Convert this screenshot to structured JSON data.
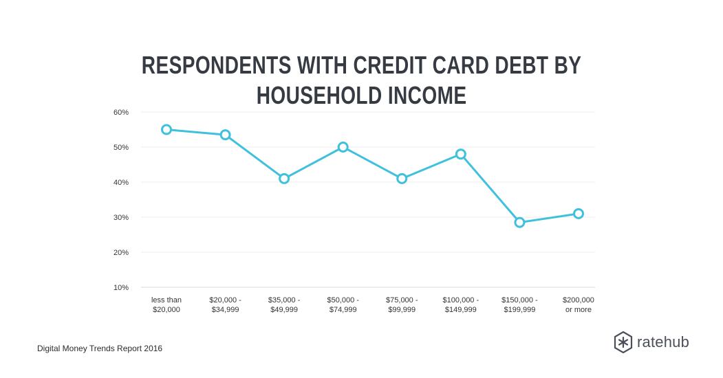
{
  "chart_data": {
    "type": "line",
    "title": "RESPONDENTS WITH CREDIT CARD DEBT BY HOUSEHOLD INCOME",
    "categories": [
      [
        "less than",
        "$20,000"
      ],
      [
        "$20,000 -",
        "$34,999"
      ],
      [
        "$35,000 -",
        "$49,999"
      ],
      [
        "$50,000 -",
        "$74,999"
      ],
      [
        "$75,000 -",
        "$99,999"
      ],
      [
        "$100,000 -",
        "$149,999"
      ],
      [
        "$150,000 -",
        "$199,999"
      ],
      [
        "$200,000",
        "or more"
      ]
    ],
    "values": [
      55,
      53.5,
      41,
      50,
      41,
      48,
      28.5,
      31
    ],
    "yticks": [
      "10%",
      "20%",
      "30%",
      "40%",
      "50%",
      "60%"
    ],
    "ytick_values": [
      10,
      20,
      30,
      40,
      50,
      60
    ],
    "ylim": [
      10,
      60
    ],
    "grid": true,
    "line_color": "#3fc1dd"
  },
  "source": "Digital Money Trends Report 2016",
  "logo": {
    "text": "ratehub",
    "icon": "ratehub-asterisk-hexagon-icon",
    "color": "#4a4f59"
  }
}
